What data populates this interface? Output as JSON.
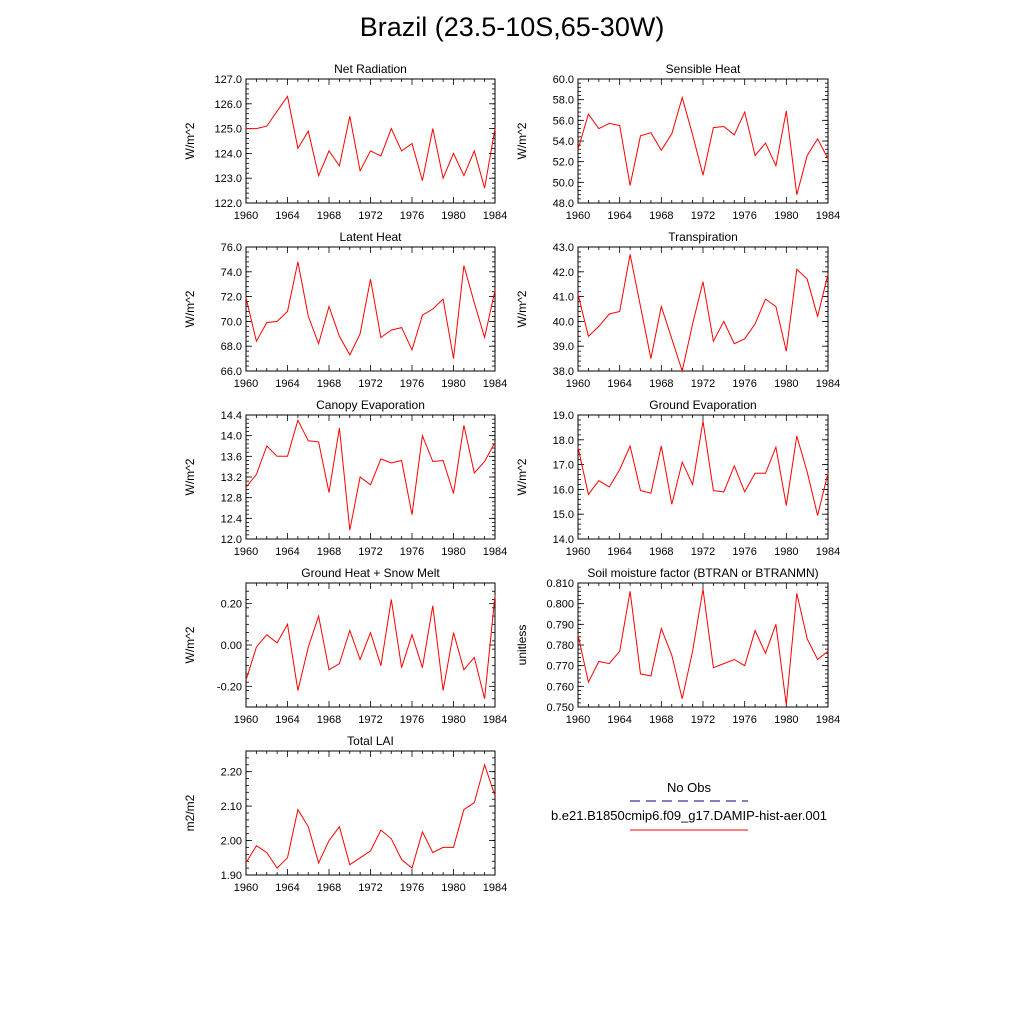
{
  "title": "Brazil (23.5-10S,65-30W)",
  "legend": {
    "obs_label": "No Obs",
    "obs_color": "#3030a0",
    "model_label": "b.e21.B1850cmip6.f09_g17.DAMIP-hist-aer.001",
    "model_color": "#ff0000"
  },
  "chart_data": [
    {
      "type": "line",
      "title": "Net Radiation",
      "ylabel": "W/m^2",
      "xlim": [
        1960,
        1984
      ],
      "ylim": [
        122,
        127
      ],
      "xticks": [
        "1960",
        "1964",
        "1968",
        "1972",
        "1976",
        "1980",
        "1984"
      ],
      "yticks": [
        "122.0",
        "123.0",
        "124.0",
        "125.0",
        "126.0",
        "127.0"
      ],
      "x": [
        1960,
        1961,
        1962,
        1963,
        1964,
        1965,
        1966,
        1967,
        1968,
        1969,
        1970,
        1971,
        1972,
        1973,
        1974,
        1975,
        1976,
        1977,
        1978,
        1979,
        1980,
        1981,
        1982,
        1983,
        1984
      ],
      "y": [
        125.0,
        125.0,
        125.1,
        125.7,
        126.3,
        124.2,
        124.9,
        123.1,
        124.1,
        123.5,
        125.5,
        123.3,
        124.1,
        123.9,
        125.0,
        124.1,
        124.4,
        122.9,
        125.0,
        123.0,
        124.0,
        123.1,
        124.1,
        122.6,
        125.0
      ]
    },
    {
      "type": "line",
      "title": "Sensible Heat",
      "ylabel": "W/m^2",
      "xlim": [
        1960,
        1984
      ],
      "ylim": [
        48,
        60
      ],
      "xticks": [
        "1960",
        "1964",
        "1968",
        "1972",
        "1976",
        "1980",
        "1984"
      ],
      "yticks": [
        "48.0",
        "50.0",
        "52.0",
        "54.0",
        "56.0",
        "58.0",
        "60.0"
      ],
      "x": [
        1960,
        1961,
        1962,
        1963,
        1964,
        1965,
        1966,
        1967,
        1968,
        1969,
        1970,
        1971,
        1972,
        1973,
        1974,
        1975,
        1976,
        1977,
        1978,
        1979,
        1980,
        1981,
        1982,
        1983,
        1984
      ],
      "y": [
        53.2,
        56.6,
        55.2,
        55.7,
        55.5,
        49.7,
        54.5,
        54.8,
        53.1,
        54.7,
        58.2,
        54.6,
        50.7,
        55.3,
        55.4,
        54.6,
        56.8,
        52.6,
        53.8,
        51.6,
        56.9,
        48.8,
        52.6,
        54.2,
        52.3
      ]
    },
    {
      "type": "line",
      "title": "Latent Heat",
      "ylabel": "W/m^2",
      "xlim": [
        1960,
        1984
      ],
      "ylim": [
        66,
        76
      ],
      "xticks": [
        "1960",
        "1964",
        "1968",
        "1972",
        "1976",
        "1980",
        "1984"
      ],
      "yticks": [
        "66.0",
        "68.0",
        "70.0",
        "72.0",
        "74.0",
        "76.0"
      ],
      "x": [
        1960,
        1961,
        1962,
        1963,
        1964,
        1965,
        1966,
        1967,
        1968,
        1969,
        1970,
        1971,
        1972,
        1973,
        1974,
        1975,
        1976,
        1977,
        1978,
        1979,
        1980,
        1981,
        1982,
        1983,
        1984
      ],
      "y": [
        71.9,
        68.4,
        69.9,
        70.0,
        70.8,
        74.8,
        70.4,
        68.2,
        71.2,
        68.8,
        67.3,
        69.0,
        73.4,
        68.7,
        69.3,
        69.5,
        67.7,
        70.5,
        71.0,
        71.8,
        67.0,
        74.5,
        71.5,
        68.7,
        72.5
      ]
    },
    {
      "type": "line",
      "title": "Transpiration",
      "ylabel": "W/m^2",
      "xlim": [
        1960,
        1984
      ],
      "ylim": [
        38,
        43
      ],
      "xticks": [
        "1960",
        "1964",
        "1968",
        "1972",
        "1976",
        "1980",
        "1984"
      ],
      "yticks": [
        "38.0",
        "39.0",
        "40.0",
        "41.0",
        "42.0",
        "43.0"
      ],
      "x": [
        1960,
        1961,
        1962,
        1963,
        1964,
        1965,
        1966,
        1967,
        1968,
        1969,
        1970,
        1971,
        1972,
        1973,
        1974,
        1975,
        1976,
        1977,
        1978,
        1979,
        1980,
        1981,
        1982,
        1983,
        1984
      ],
      "y": [
        41.1,
        39.4,
        39.8,
        40.3,
        40.4,
        42.7,
        40.6,
        38.5,
        40.6,
        39.3,
        38.0,
        39.9,
        41.6,
        39.2,
        40.0,
        39.1,
        39.3,
        39.9,
        40.9,
        40.6,
        38.8,
        42.1,
        41.7,
        40.2,
        41.9
      ]
    },
    {
      "type": "line",
      "title": "Canopy Evaporation",
      "ylabel": "W/m^2",
      "xlim": [
        1960,
        1984
      ],
      "ylim": [
        12.0,
        14.4
      ],
      "xticks": [
        "1960",
        "1964",
        "1968",
        "1972",
        "1976",
        "1980",
        "1984"
      ],
      "yticks": [
        "12.0",
        "12.4",
        "12.8",
        "13.2",
        "13.6",
        "14.0",
        "14.4"
      ],
      "x": [
        1960,
        1961,
        1962,
        1963,
        1964,
        1965,
        1966,
        1967,
        1968,
        1969,
        1970,
        1971,
        1972,
        1973,
        1974,
        1975,
        1976,
        1977,
        1978,
        1979,
        1980,
        1981,
        1982,
        1983,
        1984
      ],
      "y": [
        13.0,
        13.25,
        13.8,
        13.6,
        13.6,
        14.3,
        13.9,
        13.88,
        12.9,
        14.15,
        12.17,
        13.2,
        13.05,
        13.55,
        13.47,
        13.52,
        12.47,
        14.0,
        13.5,
        13.52,
        12.88,
        14.2,
        13.28,
        13.5,
        13.87
      ]
    },
    {
      "type": "line",
      "title": "Ground Evaporation",
      "ylabel": "W/m^2",
      "xlim": [
        1960,
        1984
      ],
      "ylim": [
        14,
        19
      ],
      "xticks": [
        "1960",
        "1964",
        "1968",
        "1972",
        "1976",
        "1980",
        "1984"
      ],
      "yticks": [
        "14.0",
        "15.0",
        "16.0",
        "17.0",
        "18.0",
        "19.0"
      ],
      "x": [
        1960,
        1961,
        1962,
        1963,
        1964,
        1965,
        1966,
        1967,
        1968,
        1969,
        1970,
        1971,
        1972,
        1973,
        1974,
        1975,
        1976,
        1977,
        1978,
        1979,
        1980,
        1981,
        1982,
        1983,
        1984
      ],
      "y": [
        17.7,
        15.8,
        16.35,
        16.1,
        16.8,
        17.75,
        15.95,
        15.85,
        17.75,
        15.4,
        17.1,
        16.2,
        18.75,
        15.95,
        15.9,
        16.95,
        15.9,
        16.65,
        16.65,
        17.7,
        15.35,
        18.15,
        16.7,
        14.95,
        16.65
      ]
    },
    {
      "type": "line",
      "title": "Ground Heat + Snow Melt",
      "ylabel": "W/m^2",
      "xlim": [
        1960,
        1984
      ],
      "ylim": [
        -0.3,
        0.3
      ],
      "xticks": [
        "1960",
        "1964",
        "1968",
        "1972",
        "1976",
        "1980",
        "1984"
      ],
      "yticks": [
        "-0.20",
        "0.00",
        "0.20"
      ],
      "ytick_values": [
        -0.2,
        0.0,
        0.2
      ],
      "x": [
        1960,
        1961,
        1962,
        1963,
        1964,
        1965,
        1966,
        1967,
        1968,
        1969,
        1970,
        1971,
        1972,
        1973,
        1974,
        1975,
        1976,
        1977,
        1978,
        1979,
        1980,
        1981,
        1982,
        1983,
        1984
      ],
      "y": [
        -0.17,
        -0.01,
        0.05,
        0.01,
        0.1,
        -0.22,
        -0.01,
        0.14,
        -0.12,
        -0.09,
        0.07,
        -0.07,
        0.06,
        -0.1,
        0.22,
        -0.11,
        0.05,
        -0.11,
        0.19,
        -0.22,
        0.06,
        -0.12,
        -0.06,
        -0.26,
        0.24
      ]
    },
    {
      "type": "line",
      "title": "Soil moisture factor (BTRAN or BTRANMN)",
      "ylabel": "unitless",
      "xlim": [
        1960,
        1984
      ],
      "ylim": [
        0.75,
        0.81
      ],
      "xticks": [
        "1960",
        "1964",
        "1968",
        "1972",
        "1976",
        "1980",
        "1984"
      ],
      "yticks": [
        "0.750",
        "0.760",
        "0.770",
        "0.780",
        "0.790",
        "0.800",
        "0.810"
      ],
      "x": [
        1960,
        1961,
        1962,
        1963,
        1964,
        1965,
        1966,
        1967,
        1968,
        1969,
        1970,
        1971,
        1972,
        1973,
        1974,
        1975,
        1976,
        1977,
        1978,
        1979,
        1980,
        1981,
        1982,
        1983,
        1984
      ],
      "y": [
        0.785,
        0.762,
        0.772,
        0.771,
        0.777,
        0.806,
        0.766,
        0.765,
        0.788,
        0.775,
        0.754,
        0.777,
        0.807,
        0.769,
        0.771,
        0.773,
        0.77,
        0.787,
        0.776,
        0.79,
        0.751,
        0.805,
        0.783,
        0.773,
        0.777
      ]
    },
    {
      "type": "line",
      "title": "Total LAI",
      "ylabel": "m2/m2",
      "xlim": [
        1960,
        1984
      ],
      "ylim": [
        1.9,
        2.26
      ],
      "xticks": [
        "1960",
        "1964",
        "1968",
        "1972",
        "1976",
        "1980",
        "1984"
      ],
      "yticks": [
        "1.90",
        "2.00",
        "2.10",
        "2.20"
      ],
      "ytick_values": [
        1.9,
        2.0,
        2.1,
        2.2
      ],
      "x": [
        1960,
        1961,
        1962,
        1963,
        1964,
        1965,
        1966,
        1967,
        1968,
        1969,
        1970,
        1971,
        1972,
        1973,
        1974,
        1975,
        1976,
        1977,
        1978,
        1979,
        1980,
        1981,
        1982,
        1983,
        1984
      ],
      "y": [
        1.935,
        1.985,
        1.965,
        1.92,
        1.95,
        2.09,
        2.04,
        1.935,
        2.0,
        2.04,
        1.93,
        1.95,
        1.97,
        2.03,
        2.005,
        1.945,
        1.92,
        2.025,
        1.965,
        1.98,
        1.98,
        2.09,
        2.11,
        2.22,
        2.13
      ]
    }
  ]
}
